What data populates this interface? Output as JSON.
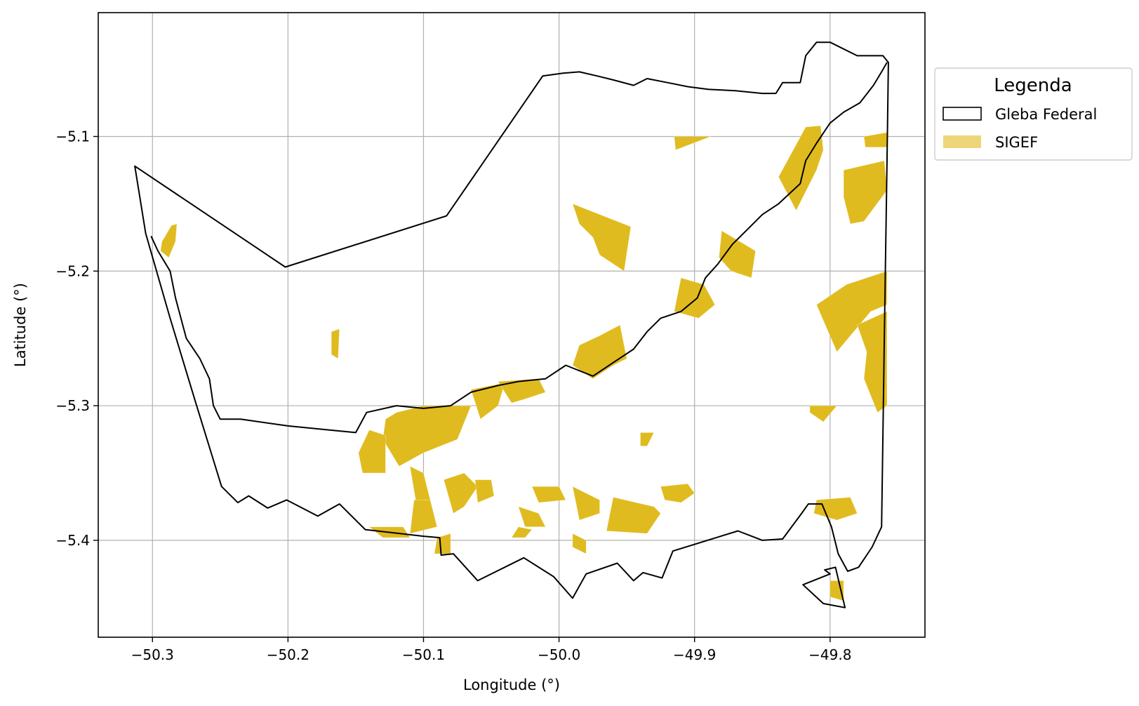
{
  "chart_data": {
    "type": "map",
    "xlabel": "Longitude (°)",
    "ylabel": "Latitude (°)",
    "xlim": [
      -50.34,
      -49.73
    ],
    "ylim": [
      -5.472,
      -5.008
    ],
    "xticks": [
      -50.3,
      -50.2,
      -50.1,
      -50.0,
      -49.9,
      -49.8
    ],
    "xtick_labels": [
      "−50.3",
      "−50.2",
      "−50.1",
      "−50.0",
      "−49.9",
      "−49.8"
    ],
    "yticks": [
      -5.1,
      -5.2,
      -5.3,
      -5.4
    ],
    "ytick_labels": [
      "−5.1",
      "−5.2",
      "−5.3",
      "−5.4"
    ],
    "grid": true,
    "legend": {
      "title": "Legenda",
      "placement": "outside-upper-right",
      "entries": [
        {
          "label": "Gleba Federal",
          "style": "outline",
          "color": "#000000"
        },
        {
          "label": "SIGEF",
          "style": "fill",
          "color": "#E0BB1F"
        }
      ]
    },
    "colors": {
      "sigef": "#E0BB1F",
      "outline": "#000000",
      "grid": "#b0b0b0"
    },
    "gleba_outer_boundary": [
      [
        -50.313,
        -5.122
      ],
      [
        -50.305,
        -5.172
      ],
      [
        -50.287,
        -5.235
      ],
      [
        -50.268,
        -5.298
      ],
      [
        -50.249,
        -5.36
      ],
      [
        -50.237,
        -5.372
      ],
      [
        -50.229,
        -5.367
      ],
      [
        -50.215,
        -5.376
      ],
      [
        -50.201,
        -5.37
      ],
      [
        -50.178,
        -5.382
      ],
      [
        -50.162,
        -5.373
      ],
      [
        -50.143,
        -5.392
      ],
      [
        -50.1,
        -5.397
      ],
      [
        -50.088,
        -5.398
      ],
      [
        -50.087,
        -5.411
      ],
      [
        -50.078,
        -5.41
      ],
      [
        -50.06,
        -5.43
      ],
      [
        -50.026,
        -5.413
      ],
      [
        -50.004,
        -5.427
      ],
      [
        -49.99,
        -5.443
      ],
      [
        -49.98,
        -5.425
      ],
      [
        -49.957,
        -5.417
      ],
      [
        -49.945,
        -5.43
      ],
      [
        -49.938,
        -5.424
      ],
      [
        -49.924,
        -5.428
      ],
      [
        -49.916,
        -5.408
      ],
      [
        -49.868,
        -5.393
      ],
      [
        -49.85,
        -5.4
      ],
      [
        -49.835,
        -5.399
      ],
      [
        -49.821,
        -5.38
      ],
      [
        -49.816,
        -5.373
      ],
      [
        -49.806,
        -5.373
      ],
      [
        -49.799,
        -5.39
      ],
      [
        -49.794,
        -5.41
      ],
      [
        -49.787,
        -5.423
      ],
      [
        -49.779,
        -5.42
      ],
      [
        -49.769,
        -5.405
      ],
      [
        -49.762,
        -5.39
      ],
      [
        -49.76,
        -5.25
      ],
      [
        -49.758,
        -5.12
      ],
      [
        -49.757,
        -5.045
      ],
      [
        -49.761,
        -5.04
      ],
      [
        -49.768,
        -5.04
      ],
      [
        -49.78,
        -5.04
      ],
      [
        -49.8,
        -5.03
      ],
      [
        -49.81,
        -5.03
      ],
      [
        -49.818,
        -5.04
      ],
      [
        -49.822,
        -5.06
      ],
      [
        -49.835,
        -5.06
      ],
      [
        -49.84,
        -5.068
      ],
      [
        -49.85,
        -5.068
      ],
      [
        -49.87,
        -5.066
      ],
      [
        -49.89,
        -5.065
      ],
      [
        -49.905,
        -5.063
      ],
      [
        -49.92,
        -5.06
      ],
      [
        -49.935,
        -5.057
      ],
      [
        -49.945,
        -5.062
      ],
      [
        -49.96,
        -5.058
      ],
      [
        -49.972,
        -5.055
      ],
      [
        -49.985,
        -5.052
      ],
      [
        -49.997,
        -5.053
      ],
      [
        -50.012,
        -5.055
      ],
      [
        -50.083,
        -5.159
      ],
      [
        -50.202,
        -5.197
      ]
    ],
    "gleba_inner_boundary": [
      [
        -50.301,
        -5.174
      ],
      [
        -50.296,
        -5.185
      ],
      [
        -50.287,
        -5.2
      ],
      [
        -50.283,
        -5.22
      ],
      [
        -50.275,
        -5.25
      ],
      [
        -50.265,
        -5.265
      ],
      [
        -50.258,
        -5.28
      ],
      [
        -50.255,
        -5.3
      ],
      [
        -50.25,
        -5.31
      ],
      [
        -50.235,
        -5.31
      ],
      [
        -50.2,
        -5.315
      ],
      [
        -50.17,
        -5.318
      ],
      [
        -50.15,
        -5.32
      ],
      [
        -50.142,
        -5.305
      ],
      [
        -50.12,
        -5.3
      ],
      [
        -50.1,
        -5.302
      ],
      [
        -50.08,
        -5.3
      ],
      [
        -50.065,
        -5.29
      ],
      [
        -50.045,
        -5.285
      ],
      [
        -50.03,
        -5.282
      ],
      [
        -50.01,
        -5.28
      ],
      [
        -49.995,
        -5.27
      ],
      [
        -49.975,
        -5.278
      ],
      [
        -49.96,
        -5.268
      ],
      [
        -49.945,
        -5.258
      ],
      [
        -49.935,
        -5.245
      ],
      [
        -49.925,
        -5.235
      ],
      [
        -49.91,
        -5.23
      ],
      [
        -49.898,
        -5.22
      ],
      [
        -49.892,
        -5.205
      ],
      [
        -49.883,
        -5.195
      ],
      [
        -49.872,
        -5.18
      ],
      [
        -49.86,
        -5.168
      ],
      [
        -49.85,
        -5.158
      ],
      [
        -49.838,
        -5.15
      ],
      [
        -49.822,
        -5.135
      ],
      [
        -49.818,
        -5.118
      ],
      [
        -49.81,
        -5.105
      ],
      [
        -49.8,
        -5.09
      ],
      [
        -49.79,
        -5.082
      ],
      [
        -49.778,
        -5.075
      ],
      [
        -49.768,
        -5.062
      ],
      [
        -49.762,
        -5.052
      ],
      [
        -49.758,
        -5.045
      ]
    ],
    "gleba_enclave": [
      [
        -49.804,
        -5.422
      ],
      [
        -49.796,
        -5.42
      ],
      [
        -49.789,
        -5.45
      ],
      [
        -49.805,
        -5.447
      ],
      [
        -49.82,
        -5.433
      ],
      [
        -49.8,
        -5.425
      ]
    ],
    "sigef_parcels": [
      [
        [
          -50.293,
          -5.178
        ],
        [
          -50.286,
          -5.166
        ],
        [
          -50.282,
          -5.165
        ],
        [
          -50.283,
          -5.178
        ],
        [
          -50.288,
          -5.19
        ],
        [
          -50.294,
          -5.185
        ]
      ],
      [
        [
          -49.915,
          -5.1
        ],
        [
          -49.9,
          -5.1
        ],
        [
          -49.888,
          -5.1
        ],
        [
          -49.914,
          -5.11
        ]
      ],
      [
        [
          -49.775,
          -5.1
        ],
        [
          -49.758,
          -5.097
        ],
        [
          -49.758,
          -5.108
        ],
        [
          -49.774,
          -5.108
        ]
      ],
      [
        [
          -49.818,
          -5.093
        ],
        [
          -49.807,
          -5.092
        ],
        [
          -49.805,
          -5.11
        ],
        [
          -49.81,
          -5.125
        ],
        [
          -49.825,
          -5.155
        ],
        [
          -49.838,
          -5.13
        ]
      ],
      [
        [
          -49.79,
          -5.125
        ],
        [
          -49.76,
          -5.118
        ],
        [
          -49.758,
          -5.14
        ],
        [
          -49.775,
          -5.163
        ],
        [
          -49.785,
          -5.165
        ],
        [
          -49.79,
          -5.145
        ]
      ],
      [
        [
          -49.99,
          -5.15
        ],
        [
          -49.947,
          -5.167
        ],
        [
          -49.952,
          -5.2
        ],
        [
          -49.97,
          -5.188
        ],
        [
          -49.975,
          -5.175
        ],
        [
          -49.985,
          -5.165
        ]
      ],
      [
        [
          -49.88,
          -5.17
        ],
        [
          -49.855,
          -5.185
        ],
        [
          -49.858,
          -5.205
        ],
        [
          -49.873,
          -5.2
        ],
        [
          -49.882,
          -5.19
        ]
      ],
      [
        [
          -49.91,
          -5.205
        ],
        [
          -49.893,
          -5.21
        ],
        [
          -49.885,
          -5.225
        ],
        [
          -49.897,
          -5.235
        ],
        [
          -49.915,
          -5.23
        ]
      ],
      [
        [
          -49.788,
          -5.21
        ],
        [
          -49.758,
          -5.2
        ],
        [
          -49.758,
          -5.225
        ],
        [
          -49.77,
          -5.23
        ],
        [
          -49.795,
          -5.26
        ],
        [
          -49.81,
          -5.225
        ]
      ],
      [
        [
          -49.78,
          -5.24
        ],
        [
          -49.758,
          -5.23
        ],
        [
          -49.758,
          -5.3
        ],
        [
          -49.765,
          -5.305
        ],
        [
          -49.775,
          -5.28
        ],
        [
          -49.773,
          -5.26
        ]
      ],
      [
        [
          -49.985,
          -5.255
        ],
        [
          -49.97,
          -5.248
        ],
        [
          -49.955,
          -5.24
        ],
        [
          -49.95,
          -5.265
        ],
        [
          -49.96,
          -5.27
        ],
        [
          -49.975,
          -5.28
        ],
        [
          -49.99,
          -5.27
        ]
      ],
      [
        [
          -50.168,
          -5.245
        ],
        [
          -50.162,
          -5.243
        ],
        [
          -50.163,
          -5.265
        ],
        [
          -50.168,
          -5.262
        ]
      ],
      [
        [
          -50.1,
          -5.3
        ],
        [
          -50.12,
          -5.305
        ],
        [
          -50.128,
          -5.31
        ],
        [
          -50.13,
          -5.325
        ],
        [
          -50.118,
          -5.345
        ],
        [
          -50.1,
          -5.335
        ],
        [
          -50.075,
          -5.325
        ],
        [
          -50.065,
          -5.3
        ]
      ],
      [
        [
          -50.065,
          -5.288
        ],
        [
          -50.04,
          -5.283
        ],
        [
          -50.045,
          -5.3
        ],
        [
          -50.058,
          -5.31
        ]
      ],
      [
        [
          -50.045,
          -5.282
        ],
        [
          -50.015,
          -5.28
        ],
        [
          -50.01,
          -5.29
        ],
        [
          -50.025,
          -5.295
        ],
        [
          -50.035,
          -5.298
        ]
      ],
      [
        [
          -50.148,
          -5.335
        ],
        [
          -50.14,
          -5.318
        ],
        [
          -50.128,
          -5.322
        ],
        [
          -50.128,
          -5.35
        ],
        [
          -50.145,
          -5.35
        ]
      ],
      [
        [
          -49.815,
          -5.3
        ],
        [
          -49.795,
          -5.3
        ],
        [
          -49.805,
          -5.312
        ],
        [
          -49.815,
          -5.305
        ]
      ],
      [
        [
          -49.94,
          -5.32
        ],
        [
          -49.93,
          -5.32
        ],
        [
          -49.935,
          -5.33
        ],
        [
          -49.94,
          -5.33
        ]
      ],
      [
        [
          -50.11,
          -5.345
        ],
        [
          -50.1,
          -5.35
        ],
        [
          -50.095,
          -5.37
        ],
        [
          -50.105,
          -5.375
        ]
      ],
      [
        [
          -50.085,
          -5.355
        ],
        [
          -50.07,
          -5.35
        ],
        [
          -50.06,
          -5.36
        ],
        [
          -50.07,
          -5.375
        ],
        [
          -50.078,
          -5.38
        ]
      ],
      [
        [
          -50.062,
          -5.355
        ],
        [
          -50.05,
          -5.355
        ],
        [
          -50.048,
          -5.367
        ],
        [
          -50.06,
          -5.372
        ]
      ],
      [
        [
          -50.107,
          -5.37
        ],
        [
          -50.095,
          -5.37
        ],
        [
          -50.09,
          -5.39
        ],
        [
          -50.11,
          -5.395
        ]
      ],
      [
        [
          -50.03,
          -5.375
        ],
        [
          -50.015,
          -5.38
        ],
        [
          -50.01,
          -5.39
        ],
        [
          -50.025,
          -5.39
        ]
      ],
      [
        [
          -50.02,
          -5.36
        ],
        [
          -50.0,
          -5.36
        ],
        [
          -49.995,
          -5.37
        ],
        [
          -50.015,
          -5.372
        ]
      ],
      [
        [
          -49.99,
          -5.36
        ],
        [
          -49.97,
          -5.37
        ],
        [
          -49.97,
          -5.38
        ],
        [
          -49.985,
          -5.385
        ]
      ],
      [
        [
          -49.96,
          -5.368
        ],
        [
          -49.93,
          -5.375
        ],
        [
          -49.925,
          -5.38
        ],
        [
          -49.935,
          -5.395
        ],
        [
          -49.965,
          -5.393
        ]
      ],
      [
        [
          -49.925,
          -5.36
        ],
        [
          -49.905,
          -5.358
        ],
        [
          -49.9,
          -5.365
        ],
        [
          -49.91,
          -5.372
        ],
        [
          -49.922,
          -5.37
        ]
      ],
      [
        [
          -50.03,
          -5.39
        ],
        [
          -50.02,
          -5.392
        ],
        [
          -50.025,
          -5.398
        ],
        [
          -50.035,
          -5.398
        ]
      ],
      [
        [
          -49.99,
          -5.395
        ],
        [
          -49.98,
          -5.4
        ],
        [
          -49.98,
          -5.41
        ],
        [
          -49.99,
          -5.405
        ]
      ],
      [
        [
          -50.14,
          -5.39
        ],
        [
          -50.115,
          -5.39
        ],
        [
          -50.11,
          -5.398
        ],
        [
          -50.13,
          -5.398
        ]
      ],
      [
        [
          -50.09,
          -5.398
        ],
        [
          -50.08,
          -5.395
        ],
        [
          -50.08,
          -5.41
        ],
        [
          -50.092,
          -5.41
        ]
      ],
      [
        [
          -49.81,
          -5.37
        ],
        [
          -49.785,
          -5.368
        ],
        [
          -49.78,
          -5.38
        ],
        [
          -49.795,
          -5.385
        ],
        [
          -49.812,
          -5.38
        ]
      ],
      [
        [
          -49.8,
          -5.43
        ],
        [
          -49.79,
          -5.43
        ],
        [
          -49.79,
          -5.445
        ],
        [
          -49.8,
          -5.442
        ]
      ]
    ]
  }
}
